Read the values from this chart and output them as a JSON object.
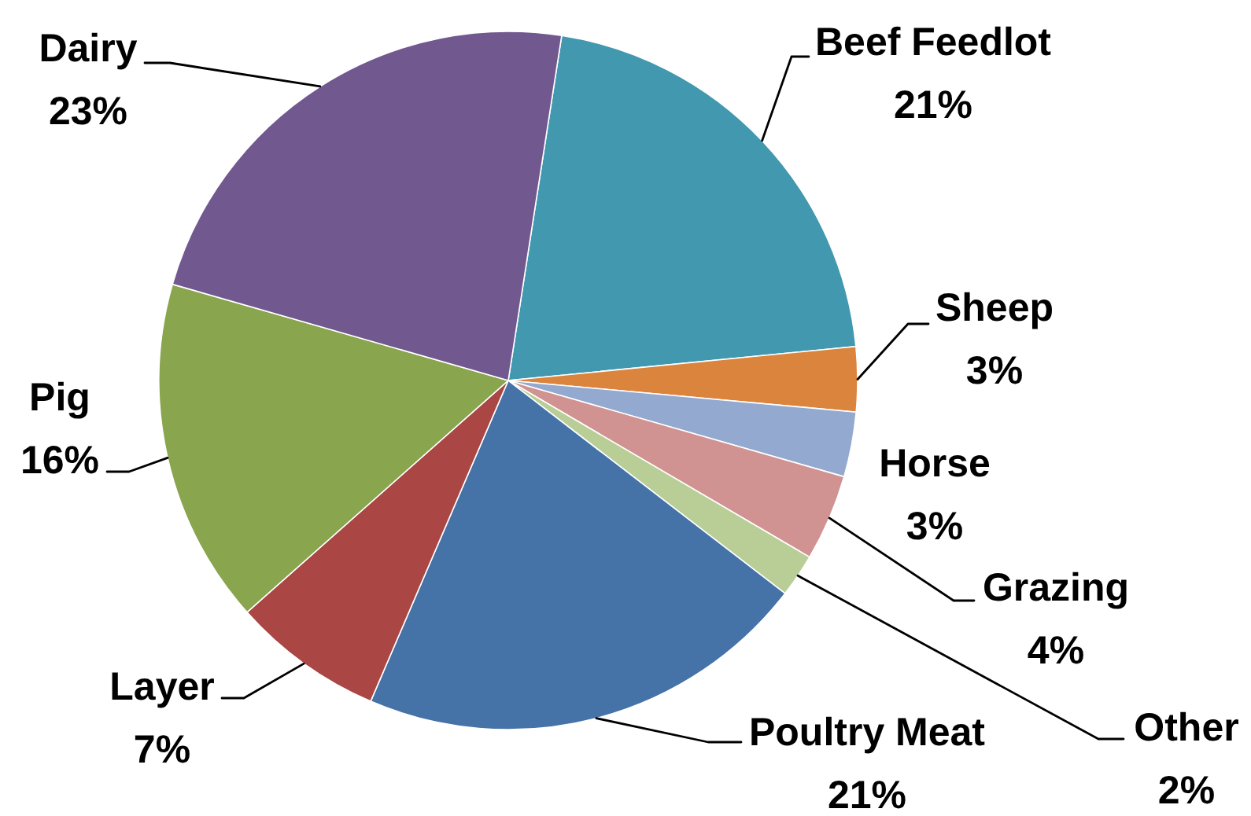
{
  "chart_data": {
    "type": "pie",
    "categories": [
      "Beef Feedlot",
      "Sheep",
      "Horse",
      "Grazing",
      "Other",
      "Poultry Meat",
      "Layer",
      "Pig",
      "Dairy"
    ],
    "values": [
      21,
      3,
      3,
      4,
      2,
      21,
      7,
      16,
      23
    ],
    "colors": [
      "#4198af",
      "#db843d",
      "#93a9cf",
      "#d19392",
      "#b9cd96",
      "#4572a7",
      "#aa4643",
      "#89a54e",
      "#71588f"
    ],
    "value_labels": [
      "21%",
      "3%",
      "3%",
      "4%",
      "2%",
      "21%",
      "7%",
      "16%",
      "23%"
    ]
  }
}
